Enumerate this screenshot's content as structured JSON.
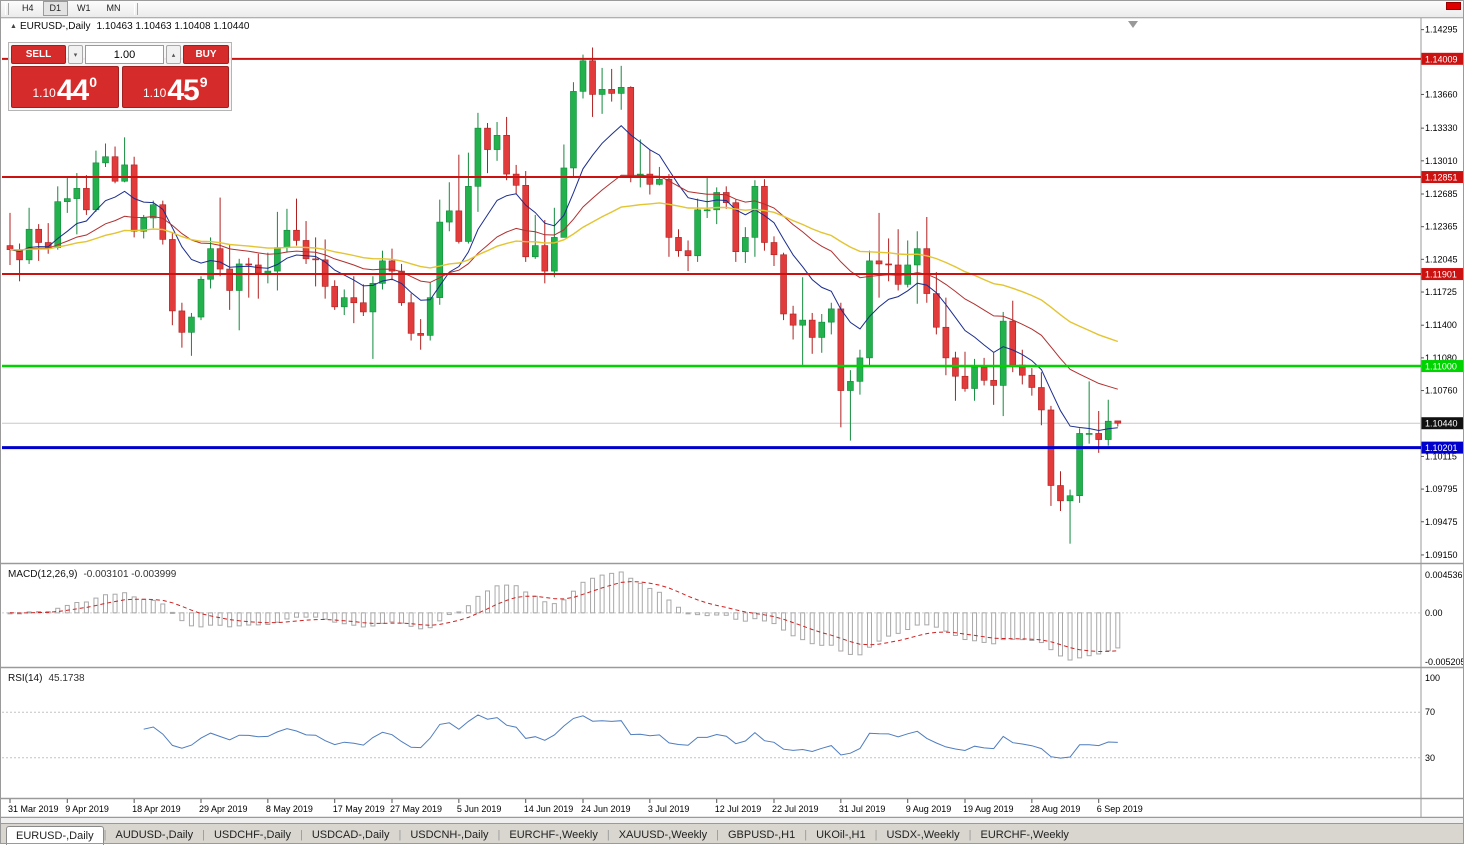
{
  "icons": {
    "chart_marker": "▲",
    "spinner_up": "▴",
    "spinner_down": "▾"
  },
  "window": {
    "close_color": "#e00000"
  },
  "toolbar": {
    "timeframes": [
      "H4",
      "D1",
      "W1",
      "MN"
    ],
    "active": "D1"
  },
  "chart_header": {
    "symbol": "EURUSD-,Daily",
    "ohlc": "1.10463 1.10463 1.10408 1.10440"
  },
  "trade_panel": {
    "sell_label": "SELL",
    "buy_label": "BUY",
    "volume": "1.00",
    "sell_price": {
      "prefix": "1.10",
      "big": "44",
      "sup": "0"
    },
    "buy_price": {
      "prefix": "1.10",
      "big": "45",
      "sup": "9"
    },
    "accent": "#d62b2b"
  },
  "chart_data": {
    "type": "candlestick",
    "title": "EURUSD-,Daily",
    "y_axis": {
      "max": 1.1435,
      "min": 1.0912,
      "tick_labels": [
        "1.14295",
        "1.13660",
        "1.13330",
        "1.13010",
        "1.12685",
        "1.12365",
        "1.12045",
        "1.11725",
        "1.11400",
        "1.11080",
        "1.10760",
        "1.10115",
        "1.09795",
        "1.09475",
        "1.09150"
      ]
    },
    "x_axis": {
      "date_labels": [
        {
          "text": "31 Mar 2019",
          "index": 0
        },
        {
          "text": "9 Apr 2019",
          "index": 6
        },
        {
          "text": "18 Apr 2019",
          "index": 13
        },
        {
          "text": "29 Apr 2019",
          "index": 20
        },
        {
          "text": "8 May 2019",
          "index": 27
        },
        {
          "text": "17 May 2019",
          "index": 34
        },
        {
          "text": "27 May 2019",
          "index": 40
        },
        {
          "text": "5 Jun 2019",
          "index": 47
        },
        {
          "text": "14 Jun 2019",
          "index": 54
        },
        {
          "text": "24 Jun 2019",
          "index": 60
        },
        {
          "text": "3 Jul 2019",
          "index": 67
        },
        {
          "text": "12 Jul 2019",
          "index": 74
        },
        {
          "text": "22 Jul 2019",
          "index": 80
        },
        {
          "text": "31 Jul 2019",
          "index": 87
        },
        {
          "text": "9 Aug 2019",
          "index": 94
        },
        {
          "text": "19 Aug 2019",
          "index": 100
        },
        {
          "text": "28 Aug 2019",
          "index": 107
        },
        {
          "text": "6 Sep 2019",
          "index": 114
        }
      ]
    },
    "candles": [
      [
        1.1218,
        1.125,
        1.1199,
        1.1214
      ],
      [
        1.1214,
        1.122,
        1.1183,
        1.1204
      ],
      [
        1.1204,
        1.1255,
        1.12,
        1.1234
      ],
      [
        1.1234,
        1.1239,
        1.1203,
        1.1221
      ],
      [
        1.1221,
        1.124,
        1.121,
        1.1216
      ],
      [
        1.1216,
        1.1276,
        1.1214,
        1.1261
      ],
      [
        1.1261,
        1.1285,
        1.125,
        1.1264
      ],
      [
        1.1264,
        1.1289,
        1.1229,
        1.1274
      ],
      [
        1.1274,
        1.1287,
        1.1248,
        1.1253
      ],
      [
        1.1253,
        1.1311,
        1.1251,
        1.1299
      ],
      [
        1.1299,
        1.1318,
        1.1295,
        1.1305
      ],
      [
        1.1305,
        1.1315,
        1.1279,
        1.1281
      ],
      [
        1.1281,
        1.1324,
        1.128,
        1.1297
      ],
      [
        1.1297,
        1.1305,
        1.1226,
        1.1232
      ],
      [
        1.1232,
        1.1248,
        1.1225,
        1.1245
      ],
      [
        1.1245,
        1.1262,
        1.1235,
        1.1258
      ],
      [
        1.1258,
        1.1262,
        1.1219,
        1.1224
      ],
      [
        1.1224,
        1.123,
        1.114,
        1.1154
      ],
      [
        1.1154,
        1.1162,
        1.1118,
        1.1133
      ],
      [
        1.1133,
        1.1152,
        1.111,
        1.1148
      ],
      [
        1.1148,
        1.1188,
        1.1145,
        1.1185
      ],
      [
        1.1185,
        1.1226,
        1.1176,
        1.1215
      ],
      [
        1.1215,
        1.1265,
        1.1188,
        1.1195
      ],
      [
        1.1195,
        1.1219,
        1.1155,
        1.1174
      ],
      [
        1.1174,
        1.1205,
        1.1135,
        1.12
      ],
      [
        1.12,
        1.1206,
        1.1167,
        1.1199
      ],
      [
        1.1199,
        1.121,
        1.1166,
        1.1191
      ],
      [
        1.1191,
        1.1211,
        1.1181,
        1.1193
      ],
      [
        1.1193,
        1.1251,
        1.1174,
        1.1216
      ],
      [
        1.1216,
        1.1254,
        1.1211,
        1.1233
      ],
      [
        1.1233,
        1.1264,
        1.1218,
        1.1223
      ],
      [
        1.1223,
        1.1242,
        1.12,
        1.1205
      ],
      [
        1.1205,
        1.1226,
        1.1178,
        1.1204
      ],
      [
        1.1204,
        1.1224,
        1.1166,
        1.1178
      ],
      [
        1.1178,
        1.1184,
        1.1155,
        1.1158
      ],
      [
        1.1158,
        1.1175,
        1.115,
        1.1167
      ],
      [
        1.1167,
        1.1188,
        1.1142,
        1.1162
      ],
      [
        1.1162,
        1.118,
        1.1149,
        1.1153
      ],
      [
        1.1153,
        1.1188,
        1.1107,
        1.1181
      ],
      [
        1.1181,
        1.1213,
        1.1175,
        1.1203
      ],
      [
        1.1203,
        1.1215,
        1.1184,
        1.1193
      ],
      [
        1.1193,
        1.12,
        1.1159,
        1.1162
      ],
      [
        1.1162,
        1.1171,
        1.1125,
        1.1132
      ],
      [
        1.1132,
        1.1146,
        1.1116,
        1.113
      ],
      [
        1.113,
        1.1182,
        1.1125,
        1.1167
      ],
      [
        1.1167,
        1.1263,
        1.116,
        1.1241
      ],
      [
        1.1241,
        1.128,
        1.1232,
        1.1252
      ],
      [
        1.1252,
        1.1307,
        1.122,
        1.1222
      ],
      [
        1.1222,
        1.1309,
        1.122,
        1.1276
      ],
      [
        1.1276,
        1.1348,
        1.1251,
        1.1333
      ],
      [
        1.1333,
        1.1338,
        1.1289,
        1.1312
      ],
      [
        1.1312,
        1.1339,
        1.1301,
        1.1326
      ],
      [
        1.1326,
        1.1344,
        1.1282,
        1.1288
      ],
      [
        1.1288,
        1.1297,
        1.1268,
        1.1277
      ],
      [
        1.1277,
        1.1291,
        1.1202,
        1.1207
      ],
      [
        1.1207,
        1.1248,
        1.1205,
        1.1218
      ],
      [
        1.1218,
        1.1243,
        1.1181,
        1.1193
      ],
      [
        1.1193,
        1.1255,
        1.1187,
        1.1226
      ],
      [
        1.1226,
        1.1317,
        1.1226,
        1.1294
      ],
      [
        1.1294,
        1.1378,
        1.1286,
        1.1369
      ],
      [
        1.1369,
        1.1405,
        1.1362,
        1.1399
      ],
      [
        1.1399,
        1.1412,
        1.1344,
        1.1366
      ],
      [
        1.1366,
        1.1392,
        1.1347,
        1.1371
      ],
      [
        1.1371,
        1.1391,
        1.1359,
        1.1367
      ],
      [
        1.1367,
        1.1394,
        1.1351,
        1.1373
      ],
      [
        1.1373,
        1.1374,
        1.128,
        1.1285
      ],
      [
        1.1285,
        1.1322,
        1.1275,
        1.1288
      ],
      [
        1.1288,
        1.1312,
        1.1268,
        1.1278
      ],
      [
        1.1278,
        1.1295,
        1.1277,
        1.1283
      ],
      [
        1.1283,
        1.1288,
        1.1207,
        1.1226
      ],
      [
        1.1226,
        1.1234,
        1.1207,
        1.1213
      ],
      [
        1.1213,
        1.1223,
        1.1193,
        1.1208
      ],
      [
        1.1208,
        1.1264,
        1.1202,
        1.1253
      ],
      [
        1.1253,
        1.1286,
        1.1245,
        1.1253
      ],
      [
        1.1253,
        1.1275,
        1.1239,
        1.127
      ],
      [
        1.127,
        1.1276,
        1.1254,
        1.126
      ],
      [
        1.126,
        1.1263,
        1.1202,
        1.1212
      ],
      [
        1.1212,
        1.1236,
        1.1201,
        1.1226
      ],
      [
        1.1226,
        1.1282,
        1.1207,
        1.1276
      ],
      [
        1.1276,
        1.1283,
        1.1213,
        1.1221
      ],
      [
        1.1221,
        1.1227,
        1.1198,
        1.1209
      ],
      [
        1.1209,
        1.1211,
        1.1145,
        1.1151
      ],
      [
        1.1151,
        1.1159,
        1.1126,
        1.114
      ],
      [
        1.114,
        1.1187,
        1.1101,
        1.1145
      ],
      [
        1.1145,
        1.1152,
        1.1112,
        1.1128
      ],
      [
        1.1128,
        1.1151,
        1.1113,
        1.1143
      ],
      [
        1.1143,
        1.1162,
        1.1131,
        1.1156
      ],
      [
        1.1156,
        1.1162,
        1.104,
        1.1076
      ],
      [
        1.1076,
        1.1096,
        1.1027,
        1.1085
      ],
      [
        1.1085,
        1.1116,
        1.1072,
        1.1108
      ],
      [
        1.1108,
        1.1213,
        1.1101,
        1.1203
      ],
      [
        1.1203,
        1.125,
        1.1167,
        1.12
      ],
      [
        1.12,
        1.1225,
        1.1183,
        1.1199
      ],
      [
        1.1199,
        1.1234,
        1.1174,
        1.118
      ],
      [
        1.118,
        1.1223,
        1.1177,
        1.1199
      ],
      [
        1.1199,
        1.1232,
        1.1161,
        1.1215
      ],
      [
        1.1215,
        1.1246,
        1.1162,
        1.1171
      ],
      [
        1.1171,
        1.1192,
        1.1131,
        1.1138
      ],
      [
        1.1138,
        1.1167,
        1.1091,
        1.1108
      ],
      [
        1.1108,
        1.1114,
        1.1066,
        1.109
      ],
      [
        1.109,
        1.1114,
        1.1075,
        1.1078
      ],
      [
        1.1078,
        1.1107,
        1.1066,
        1.1099
      ],
      [
        1.1099,
        1.1108,
        1.1081,
        1.1086
      ],
      [
        1.1086,
        1.1113,
        1.1062,
        1.1081
      ],
      [
        1.1081,
        1.1153,
        1.1051,
        1.1144
      ],
      [
        1.1144,
        1.1164,
        1.1094,
        1.1101
      ],
      [
        1.1101,
        1.1116,
        1.1082,
        1.1091
      ],
      [
        1.1091,
        1.1098,
        1.1071,
        1.1079
      ],
      [
        1.1079,
        1.1094,
        1.1042,
        1.1057
      ],
      [
        1.1057,
        1.1061,
        1.0963,
        1.0983
      ],
      [
        1.0983,
        1.0997,
        1.0958,
        1.0968
      ],
      [
        1.0968,
        1.0979,
        1.0926,
        1.0973
      ],
      [
        1.0973,
        1.1039,
        1.0966,
        1.1034
      ],
      [
        1.1034,
        1.1085,
        1.1024,
        1.1034
      ],
      [
        1.1034,
        1.1056,
        1.1015,
        1.1028
      ],
      [
        1.1028,
        1.1067,
        1.1022,
        1.1046
      ],
      [
        1.10463,
        1.10463,
        1.10408,
        1.1044
      ]
    ],
    "moving_averages": [
      {
        "method": "ema",
        "period": 10,
        "color": "#1b2d8e",
        "width": 1
      },
      {
        "method": "ema",
        "period": 25,
        "color": "#b03030",
        "width": 1
      },
      {
        "method": "ema",
        "period": 50,
        "color": "#e3c431",
        "width": 1.4
      }
    ],
    "price_lines": [
      {
        "price": 1.14009,
        "label": "1.14009",
        "color": "#cc1111",
        "width": 2
      },
      {
        "price": 1.12851,
        "label": "1.12851",
        "color": "#cc1111",
        "width": 2
      },
      {
        "price": 1.11901,
        "label": "1.11901",
        "color": "#cc1111",
        "width": 2
      },
      {
        "price": 1.11,
        "label": "1.11000",
        "color": "#00d400",
        "width": 2.5
      },
      {
        "price": 1.10201,
        "label": "1.10201",
        "color": "#0000cd",
        "width": 3
      }
    ],
    "current_price": {
      "price": 1.1044,
      "label": "1.10440",
      "color": "#111111"
    },
    "style": {
      "bull": "#22b14c",
      "bull_stroke": "#128a3c",
      "bear": "#e13b3b",
      "bear_stroke": "#b02020",
      "bid_line": "#c8c8c8"
    }
  },
  "macd": {
    "title": "MACD(12,26,9)",
    "values": "-0.003101 -0.003999",
    "fast": 12,
    "slow": 26,
    "signal": 9,
    "axis_labels": [
      "0.004536",
      "0.00",
      "-0.005205"
    ],
    "histogram_color": "#a8a8a8",
    "signal_color": "#cc2222"
  },
  "rsi": {
    "title": "RSI(14)",
    "value": "45.1738",
    "period": 14,
    "levels": [
      70,
      30
    ],
    "axis_labels": [
      "100",
      "70",
      "30"
    ],
    "color": "#4f7dbf"
  },
  "tabs": {
    "active": 0,
    "items": [
      "EURUSD-,Daily",
      "AUDUSD-,Daily",
      "USDCHF-,Daily",
      "USDCAD-,Daily",
      "USDCNH-,Daily",
      "EURCHF-,Weekly",
      "XAUUSD-,Weekly",
      "GBPUSD-,H1",
      "UKOil-,H1",
      "USDX-,Weekly",
      "EURCHF-,Weekly"
    ]
  }
}
